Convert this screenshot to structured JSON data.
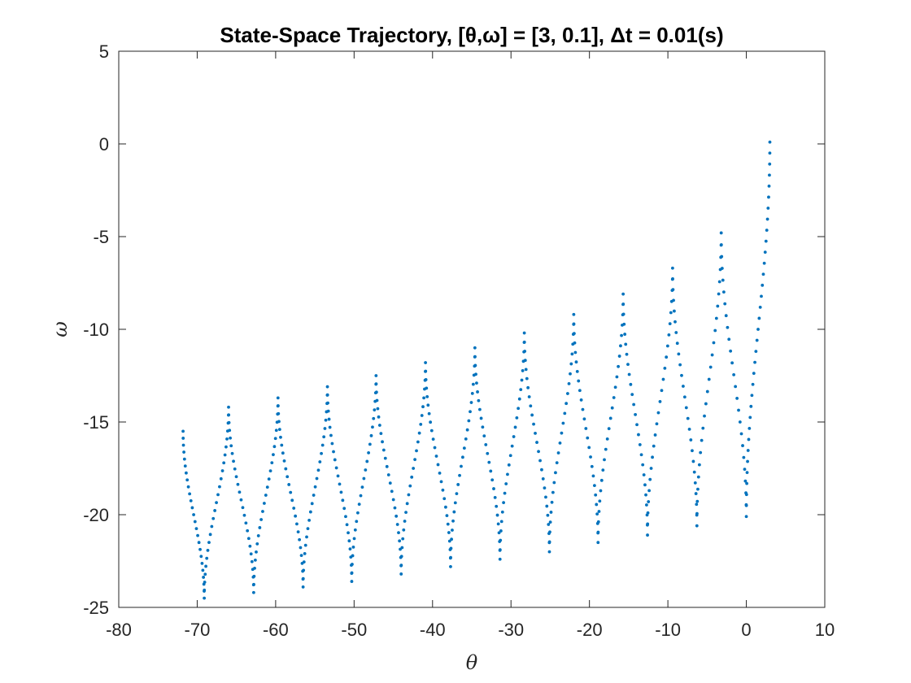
{
  "chart_data": {
    "type": "scatter",
    "title": "State-Space Trajectory, [θ,ω] = [3, 0.1], Δt = 0.01(s)",
    "xlabel": "θ",
    "ylabel": "ω",
    "xlim": [
      -80,
      10
    ],
    "ylim": [
      -25,
      5
    ],
    "xticks": [
      -80,
      -70,
      -60,
      -50,
      -40,
      -30,
      -20,
      -10,
      0,
      10
    ],
    "yticks": [
      -25,
      -20,
      -15,
      -10,
      -5,
      0,
      5
    ],
    "grid": false,
    "marker_color": "#0072BD",
    "series": [
      {
        "start": {
          "theta": 3.0,
          "omega": 0.1
        },
        "end": {
          "theta": -71.8,
          "omega": -15.5
        },
        "peaks": [
          {
            "theta": -3.2,
            "omega": -4.8
          },
          {
            "theta": -9.4,
            "omega": -6.7
          },
          {
            "theta": -15.7,
            "omega": -8.1
          },
          {
            "theta": -22.0,
            "omega": -9.2
          },
          {
            "theta": -28.3,
            "omega": -10.2
          },
          {
            "theta": -34.6,
            "omega": -11.0
          },
          {
            "theta": -40.9,
            "omega": -11.8
          },
          {
            "theta": -47.2,
            "omega": -12.5
          },
          {
            "theta": -53.4,
            "omega": -13.1
          },
          {
            "theta": -59.7,
            "omega": -13.7
          },
          {
            "theta": -66.0,
            "omega": -14.2
          }
        ],
        "troughs": [
          {
            "theta": 0.0,
            "omega": -20.1
          },
          {
            "theta": -6.3,
            "omega": -20.6
          },
          {
            "theta": -12.6,
            "omega": -21.1
          },
          {
            "theta": -18.9,
            "omega": -21.5
          },
          {
            "theta": -25.1,
            "omega": -22.0
          },
          {
            "theta": -31.4,
            "omega": -22.4
          },
          {
            "theta": -37.7,
            "omega": -22.8
          },
          {
            "theta": -44.0,
            "omega": -23.2
          },
          {
            "theta": -50.3,
            "omega": -23.6
          },
          {
            "theta": -56.5,
            "omega": -23.9
          },
          {
            "theta": -62.8,
            "omega": -24.2
          },
          {
            "theta": -69.1,
            "omega": -24.5
          }
        ]
      }
    ]
  }
}
